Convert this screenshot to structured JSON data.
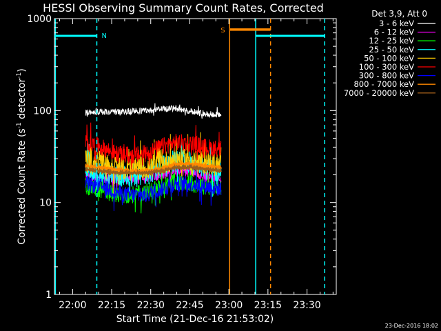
{
  "chart_data": {
    "type": "line",
    "title": "HESSI Observing Summary Count Rates, Corrected",
    "xlabel": "Start Time (21-Dec-16 21:53:02)",
    "ylabel_main": "Corrected Count Rate (s",
    "ylabel_sup1": "-1",
    "ylabel_mid": " detector",
    "ylabel_sup2": "-1",
    "ylabel_end": ")",
    "y_scale": "log",
    "ylim": [
      1,
      1000
    ],
    "xlim_minutes": [
      -6.97,
      101.23
    ],
    "x_ticks": [
      {
        "m": 0,
        "label": "22:00"
      },
      {
        "m": 15,
        "label": "22:15"
      },
      {
        "m": 30,
        "label": "22:30"
      },
      {
        "m": 45,
        "label": "22:45"
      },
      {
        "m": 60,
        "label": "23:00"
      },
      {
        "m": 75,
        "label": "23:15"
      },
      {
        "m": 90,
        "label": "23:30"
      }
    ],
    "y_ticks": [
      {
        "v": 1,
        "label": "1"
      },
      {
        "v": 10,
        "label": "10"
      },
      {
        "v": 100,
        "label": "100"
      },
      {
        "v": 1000,
        "label": "1000"
      }
    ],
    "legend_header": "Det 3,9, Att 0",
    "legend_placement": "outside-top-right",
    "footer_date": "23-Dec-2016 18:02",
    "data_window_minutes": [
      5.0,
      57.0
    ],
    "series": [
      {
        "name": "3 - 6 keV",
        "color": "#ffffff",
        "levels": [
          95,
          97,
          96,
          98,
          100,
          104,
          106,
          98,
          92,
          90
        ],
        "noise": 0.08
      },
      {
        "name": "6 - 12 keV",
        "color": "#ff00ff",
        "levels": [
          20,
          19,
          18,
          18,
          19,
          20,
          22,
          21,
          19,
          18
        ],
        "noise": 0.14
      },
      {
        "name": "12 - 25 keV",
        "color": "#00ff00",
        "levels": [
          15,
          14,
          12,
          12,
          13,
          15,
          17,
          16,
          15,
          14
        ],
        "noise": 0.22
      },
      {
        "name": "25 - 50 keV",
        "color": "#00ffff",
        "levels": [
          22,
          21,
          20,
          19,
          20,
          24,
          28,
          27,
          24,
          22
        ],
        "noise": 0.3
      },
      {
        "name": "50 - 100 keV",
        "color": "#ffcc00",
        "levels": [
          28,
          27,
          24,
          23,
          24,
          26,
          30,
          29,
          27,
          25
        ],
        "noise": 0.3
      },
      {
        "name": "100 - 300 keV",
        "color": "#ff0000",
        "levels": [
          45,
          40,
          34,
          32,
          34,
          40,
          45,
          44,
          40,
          38
        ],
        "noise": 0.22
      },
      {
        "name": "300 - 800 keV",
        "color": "#0000ff",
        "levels": [
          16,
          15,
          13,
          12,
          12,
          14,
          16,
          16,
          15,
          14
        ],
        "noise": 0.2
      },
      {
        "name": "800 - 7000 keV",
        "color": "#ff8800",
        "levels": [
          25,
          24,
          23,
          22,
          22,
          23,
          26,
          26,
          25,
          24
        ],
        "noise": 0.04
      },
      {
        "name": "7000 - 20000 keV",
        "color": "#9b5c1a",
        "levels": [
          23,
          22,
          21,
          21,
          21,
          22,
          24,
          24,
          23,
          22
        ],
        "noise": 0.03
      }
    ],
    "annotations": {
      "night_bars": [
        {
          "label": "N",
          "color": "#00ffff",
          "x0": -6.97,
          "x1": 9.3,
          "y": 650
        },
        {
          "label": "",
          "color": "#00ffff",
          "x0": 70.3,
          "x1": 96.8,
          "y": 650
        }
      ],
      "saa_bar": {
        "label": "S",
        "color": "#ff8800",
        "x0": 60.3,
        "x1": 76.0,
        "y": 760
      },
      "vlines": [
        {
          "x": -6.6,
          "color": "#00ffff",
          "style": "solid"
        },
        {
          "x": 9.3,
          "color": "#00ffff",
          "style": "dashed"
        },
        {
          "x": 60.3,
          "color": "#ff8800",
          "style": "solid"
        },
        {
          "x": 70.3,
          "color": "#00ffff",
          "style": "solid"
        },
        {
          "x": 76.0,
          "color": "#ff8800",
          "style": "dashed"
        },
        {
          "x": 96.8,
          "color": "#00ffff",
          "style": "dashed"
        }
      ]
    }
  }
}
